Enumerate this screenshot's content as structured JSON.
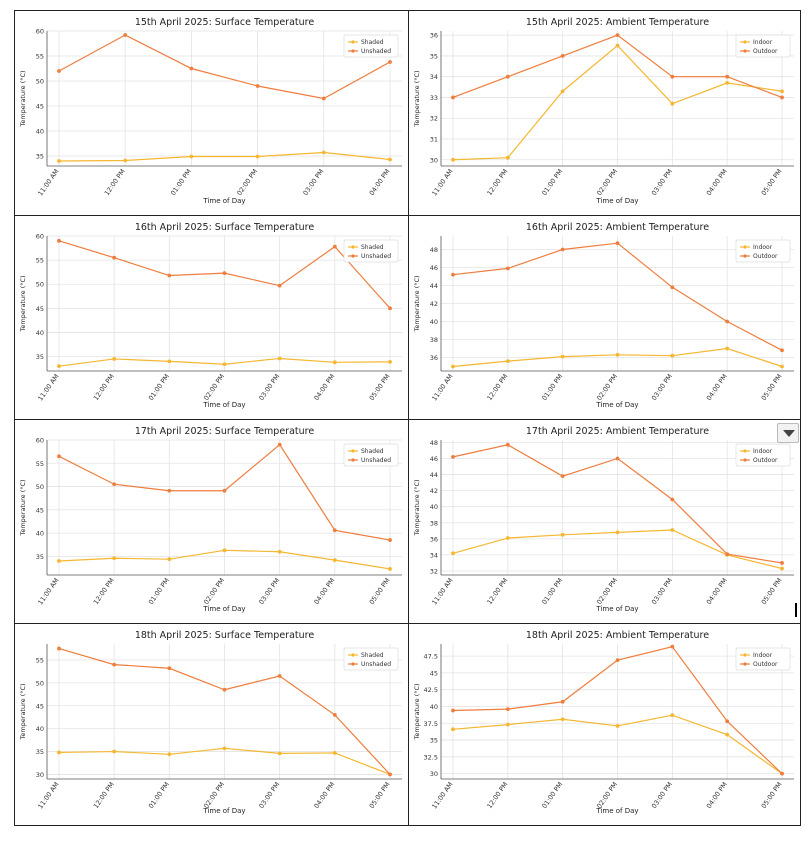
{
  "colors": {
    "shaded": "#f5b731",
    "unshaded": "#ef7d3c",
    "grid": "#e3e3e3",
    "axis": "#555555"
  },
  "chart_data": [
    {
      "type": "line",
      "title": "15th April 2025: Surface Temperature",
      "xlabel": "Time of Day",
      "ylabel": "Temperature (°C)",
      "categories": [
        "11:00 AM",
        "12:00 PM",
        "01:00 PM",
        "02:00 PM",
        "03:00 PM",
        "04:00 PM"
      ],
      "ylim": [
        33,
        60
      ],
      "yticks": [
        35,
        40,
        45,
        50,
        55,
        60
      ],
      "legend_position": "top-right",
      "grid": true,
      "series": [
        {
          "name": "Shaded",
          "values": [
            34.0,
            34.1,
            34.9,
            34.9,
            35.7,
            34.3
          ]
        },
        {
          "name": "Unshaded",
          "values": [
            52.0,
            59.2,
            52.5,
            49.0,
            46.5,
            53.8
          ]
        }
      ]
    },
    {
      "type": "line",
      "title": "15th April 2025: Ambient Temperature",
      "xlabel": "Time of Day",
      "ylabel": "Temperature (°C)",
      "categories": [
        "11:00 AM",
        "12:00 PM",
        "01:00 PM",
        "02:00 PM",
        "03:00 PM",
        "04:00 PM",
        "05:00 PM"
      ],
      "ylim": [
        29.7,
        36.2
      ],
      "yticks": [
        30,
        31,
        32,
        33,
        34,
        35,
        36
      ],
      "legend_position": "top-right",
      "grid": true,
      "series": [
        {
          "name": "Indoor",
          "values": [
            30.0,
            30.1,
            33.3,
            35.5,
            32.7,
            33.7,
            33.3
          ]
        },
        {
          "name": "Outdoor",
          "values": [
            33.0,
            34.0,
            35.0,
            36.0,
            34.0,
            34.0,
            33.0
          ]
        }
      ]
    },
    {
      "type": "line",
      "title": "16th April 2025: Surface Temperature",
      "xlabel": "Time of Day",
      "ylabel": "Temperature (°C)",
      "categories": [
        "11:00 AM",
        "12:00 PM",
        "01:00 PM",
        "02:00 PM",
        "03:00 PM",
        "04:00 PM",
        "05:00 PM"
      ],
      "ylim": [
        32,
        60
      ],
      "yticks": [
        35,
        40,
        45,
        50,
        55,
        60
      ],
      "legend_position": "top-right",
      "grid": true,
      "series": [
        {
          "name": "Shaded",
          "values": [
            33.0,
            34.5,
            34.0,
            33.4,
            34.6,
            33.8,
            33.9
          ]
        },
        {
          "name": "Unshaded",
          "values": [
            59.0,
            55.5,
            51.8,
            52.3,
            49.7,
            57.8,
            45.0
          ]
        }
      ]
    },
    {
      "type": "line",
      "title": "16th April 2025: Ambient Temperature",
      "xlabel": "Time of Day",
      "ylabel": "Temperature (°C)",
      "categories": [
        "11:00 AM",
        "12:00 PM",
        "01:00 PM",
        "02:00 PM",
        "03:00 PM",
        "04:00 PM",
        "05:00 PM"
      ],
      "ylim": [
        34.5,
        49.5
      ],
      "yticks": [
        36,
        38,
        40,
        42,
        44,
        46,
        48
      ],
      "legend_position": "top-right",
      "grid": true,
      "series": [
        {
          "name": "Indoor",
          "values": [
            35.0,
            35.6,
            36.1,
            36.3,
            36.2,
            37.0,
            35.0
          ]
        },
        {
          "name": "Outdoor",
          "values": [
            45.2,
            45.9,
            48.0,
            48.7,
            43.8,
            40.0,
            36.8
          ]
        }
      ]
    },
    {
      "type": "line",
      "title": "17th April 2025: Surface Temperature",
      "xlabel": "Time of Day",
      "ylabel": "Temperature (°C)",
      "categories": [
        "11:00 AM",
        "12:00 PM",
        "01:00 PM",
        "02:00 PM",
        "03:00 PM",
        "04:00 PM",
        "05:00 PM"
      ],
      "ylim": [
        31,
        60
      ],
      "yticks": [
        35,
        40,
        45,
        50,
        55,
        60
      ],
      "legend_position": "top-right",
      "grid": true,
      "series": [
        {
          "name": "Shaded",
          "values": [
            34.0,
            34.6,
            34.4,
            36.3,
            36.0,
            34.2,
            32.3
          ]
        },
        {
          "name": "Unshaded",
          "values": [
            56.5,
            50.5,
            49.1,
            49.1,
            59.0,
            40.6,
            38.5
          ]
        }
      ]
    },
    {
      "type": "line",
      "title": "17th April 2025: Ambient Temperature",
      "xlabel": "Time of Day",
      "ylabel": "Temperature (°C)",
      "categories": [
        "11:00 AM",
        "12:00 PM",
        "01:00 PM",
        "02:00 PM",
        "03:00 PM",
        "04:00 PM",
        "05:00 PM"
      ],
      "ylim": [
        31.5,
        48.3
      ],
      "yticks": [
        32,
        34,
        36,
        38,
        40,
        42,
        44,
        46,
        48
      ],
      "legend_position": "top-right",
      "grid": true,
      "series": [
        {
          "name": "Indoor",
          "values": [
            34.2,
            36.1,
            36.5,
            36.8,
            37.1,
            34.0,
            32.3
          ]
        },
        {
          "name": "Outdoor",
          "values": [
            46.2,
            47.7,
            43.8,
            46.0,
            40.9,
            34.1,
            33.0
          ]
        }
      ]
    },
    {
      "type": "line",
      "title": "18th April 2025: Surface Temperature",
      "xlabel": "Time of Day",
      "ylabel": "Temperature (°C)",
      "categories": [
        "11:00 AM",
        "12:00 PM",
        "01:00 PM",
        "02:00 PM",
        "03:00 PM",
        "04:00 PM",
        "05:00 PM"
      ],
      "ylim": [
        29,
        58.5
      ],
      "yticks": [
        30,
        35,
        40,
        45,
        50,
        55
      ],
      "legend_position": "top-right",
      "grid": true,
      "series": [
        {
          "name": "Shaded",
          "values": [
            34.8,
            35.0,
            34.4,
            35.7,
            34.6,
            34.7,
            30.0
          ]
        },
        {
          "name": "Unshaded",
          "values": [
            57.5,
            54.0,
            53.2,
            48.5,
            51.5,
            43.0,
            30.0
          ]
        }
      ]
    },
    {
      "type": "line",
      "title": "18th April 2025: Ambient Temperature",
      "xlabel": "Time of Day",
      "ylabel": "Temperature (°C)",
      "categories": [
        "11:00 AM",
        "12:00 PM",
        "01:00 PM",
        "02:00 PM",
        "03:00 PM",
        "04:00 PM",
        "05:00 PM"
      ],
      "ylim": [
        29.2,
        49.3
      ],
      "yticks": [
        30.0,
        32.5,
        35.0,
        37.5,
        40.0,
        42.5,
        45.0,
        47.5
      ],
      "legend_position": "top-right",
      "grid": true,
      "series": [
        {
          "name": "Indoor",
          "values": [
            36.6,
            37.3,
            38.1,
            37.1,
            38.7,
            35.8,
            30.0
          ]
        },
        {
          "name": "Outdoor",
          "values": [
            39.4,
            39.6,
            40.7,
            46.9,
            48.9,
            37.8,
            30.0
          ]
        }
      ]
    }
  ]
}
